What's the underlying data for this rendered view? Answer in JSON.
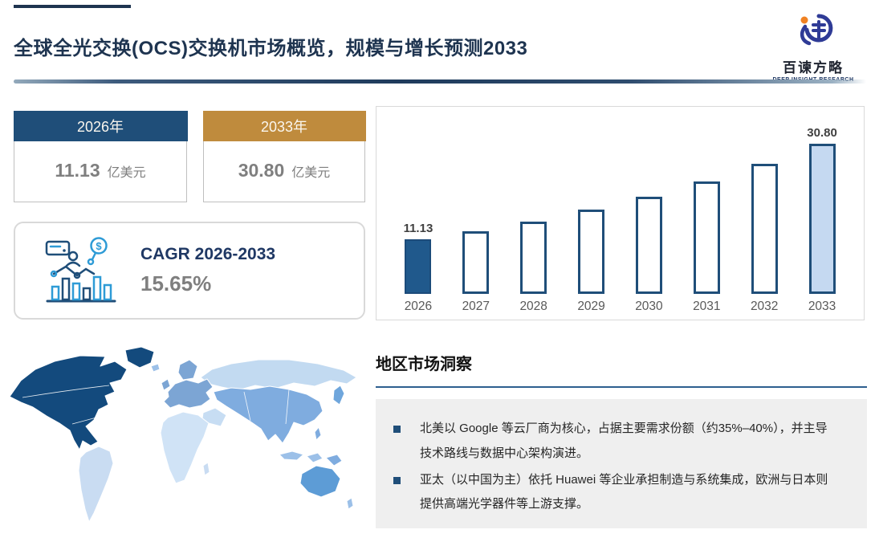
{
  "theme": {
    "navy": "#1F4E79",
    "navy_dark": "#1E3450",
    "navy_text": "#1F3864",
    "gold": "#BF8B3D",
    "gray_text": "#7F7F7F",
    "bar_fill_first": "#20598C",
    "bar_fill_last": "#C5D9F1",
    "bar_border": "#1F4E79",
    "divider_blue": "#2E5F8F",
    "box_bg": "#EFEFEF"
  },
  "header": {
    "title": "全球全光交换(OCS)交换机市场概览，规模与增长预测2033",
    "logo": {
      "name": "百谏方略",
      "tagline": "DEEP INSIGHT RESEARCH"
    }
  },
  "stat_cards": [
    {
      "year_label": "2026年",
      "value": "11.13",
      "unit": "亿美元",
      "header_color": "#1F4E79"
    },
    {
      "year_label": "2033年",
      "value": "30.80",
      "unit": "亿美元",
      "header_color": "#BF8B3D"
    }
  ],
  "cagr_card": {
    "label": "CAGR 2026-2033",
    "value": "15.65%"
  },
  "chart_data": {
    "type": "bar",
    "categories": [
      "2026",
      "2027",
      "2028",
      "2029",
      "2030",
      "2031",
      "2032",
      "2033"
    ],
    "values": [
      11.13,
      12.87,
      14.89,
      17.22,
      19.91,
      23.03,
      26.63,
      30.8
    ],
    "point_labels": {
      "0": "11.13",
      "7": "30.80"
    },
    "title": "",
    "xlabel": "",
    "ylabel": "",
    "ylim": [
      0,
      33
    ],
    "grid": false,
    "legend": false,
    "bar_colors": {
      "first_fill": "#20598C",
      "middle_fill": "#FFFFFF",
      "last_fill": "#C5D9F1",
      "border": "#1F4E79"
    }
  },
  "insights": {
    "heading": "地区市场洞察",
    "bullets": [
      "北美以 Google 等云厂商为核心，占据主要需求份额（约35%–40%），并主导技术路线与数据中心架构演进。",
      "亚太（以中国为主）依托 Huawei 等企业承担制造与系统集成，欧洲与日本则提供高端光学器件等上游支撑。"
    ]
  },
  "map": {
    "region_colors": {
      "north_america": "#134A7D",
      "greenland": "#134A7D",
      "south_america": "#C9DCF2",
      "europe": "#7CA5D4",
      "uk": "#7CA5D4",
      "scandinavia": "#7CA5D4",
      "iceland": "#9CC0E8",
      "russia": "#C2DAF1",
      "asia": "#7FACDF",
      "middle_east": "#C7DDF3",
      "africa": "#D0E3F6",
      "madagascar": "#C9DCF2",
      "japan": "#6FA6DC",
      "philippines": "#7FACDF",
      "indonesia": "#9CC0E8",
      "new_guinea": "#7FACDF",
      "australia": "#5D9CD6",
      "new_zealand": "#9CC0E8"
    }
  }
}
